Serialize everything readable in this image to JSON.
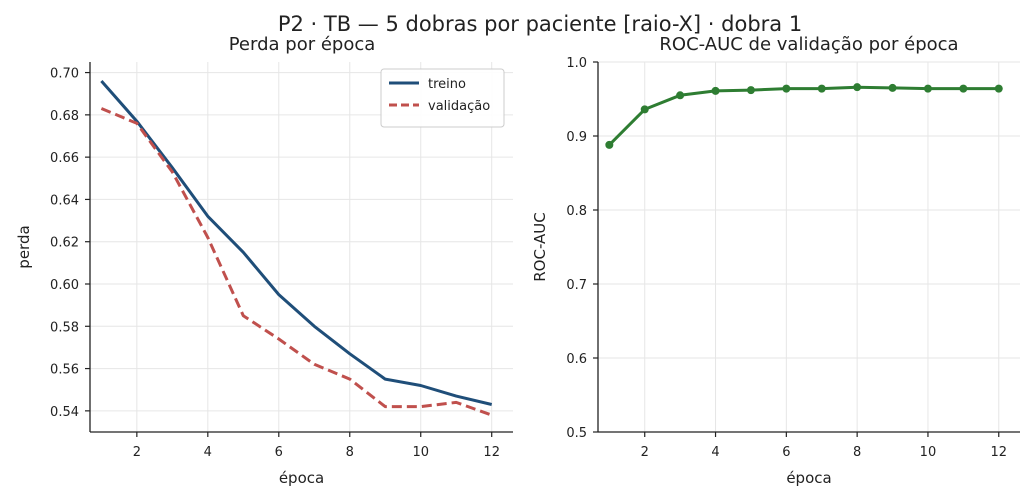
{
  "suptitle": "P2 · TB — 5 dobras por paciente [raio-X] · dobra 1",
  "chart_data": [
    {
      "type": "line",
      "title": "Perda por época",
      "xlabel": "época",
      "ylabel": "perda",
      "x": [
        1,
        2,
        3,
        4,
        5,
        6,
        7,
        8,
        9,
        10,
        11,
        12
      ],
      "xlim": [
        0.68,
        12.6
      ],
      "ylim": [
        0.53,
        0.705
      ],
      "xticks": [
        "2",
        "4",
        "6",
        "8",
        "10",
        "12"
      ],
      "yticks": [
        "0.54",
        "0.56",
        "0.58",
        "0.60",
        "0.62",
        "0.64",
        "0.66",
        "0.68",
        "0.70"
      ],
      "grid": true,
      "legend_position": "top-right",
      "series": [
        {
          "name": "treino",
          "color": "#1f4e79",
          "dash": "solid",
          "values": [
            0.696,
            0.677,
            0.655,
            0.632,
            0.615,
            0.595,
            0.58,
            0.567,
            0.555,
            0.552,
            0.547,
            0.543
          ]
        },
        {
          "name": "validação",
          "color": "#c0504d",
          "dash": "dashed",
          "values": [
            0.683,
            0.676,
            0.653,
            0.622,
            0.585,
            0.574,
            0.562,
            0.555,
            0.542,
            0.542,
            0.544,
            0.538
          ]
        }
      ]
    },
    {
      "type": "line",
      "title": "ROC-AUC de validação por época",
      "xlabel": "época",
      "ylabel": "ROC-AUC",
      "x": [
        1,
        2,
        3,
        4,
        5,
        6,
        7,
        8,
        9,
        10,
        11,
        12
      ],
      "xlim": [
        0.68,
        12.6
      ],
      "ylim": [
        0.5,
        1.0
      ],
      "xticks": [
        "2",
        "4",
        "6",
        "8",
        "10",
        "12"
      ],
      "yticks": [
        "0.5",
        "0.6",
        "0.7",
        "0.8",
        "0.9",
        "1.0"
      ],
      "grid": true,
      "series": [
        {
          "color": "#2e7d32",
          "marker": "circle",
          "values": [
            0.888,
            0.936,
            0.955,
            0.961,
            0.962,
            0.964,
            0.964,
            0.966,
            0.965,
            0.964,
            0.964,
            0.964
          ]
        }
      ]
    }
  ]
}
